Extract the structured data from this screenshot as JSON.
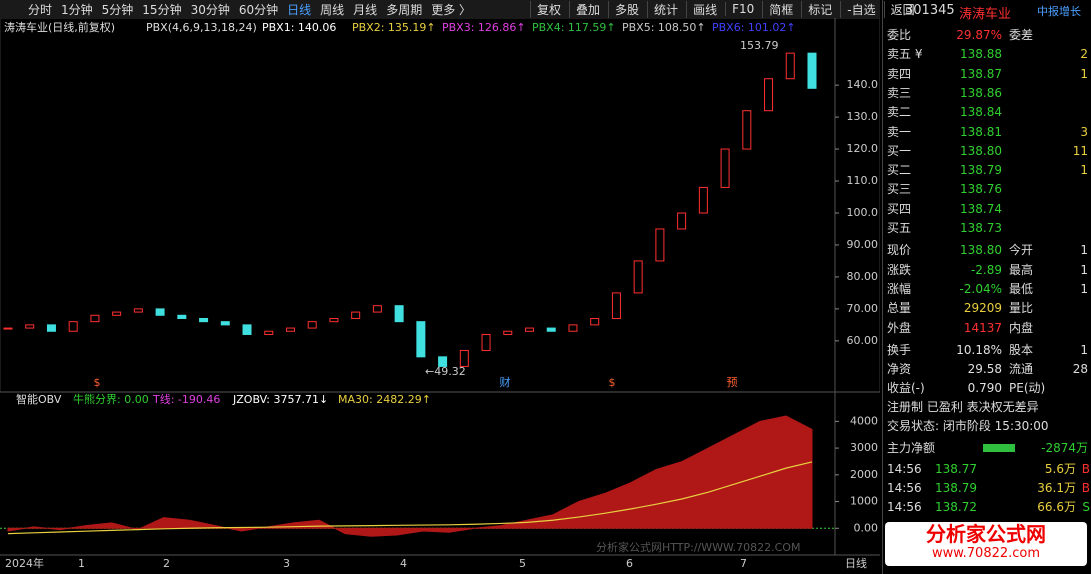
{
  "toolbar": {
    "left": [
      "分时",
      "1分钟",
      "5分钟",
      "15分钟",
      "30分钟",
      "60分钟",
      "日线",
      "周线",
      "月线",
      "多周期",
      "更多 〉"
    ],
    "active": "日线",
    "right": [
      "复权",
      "叠加",
      "多股",
      "统计",
      "画线",
      "F10",
      "简框",
      "标记",
      "-自选",
      "返回"
    ]
  },
  "chart_data": [
    {
      "type": "candlestick",
      "title": "涛涛车业(日线,前复权)",
      "indicator": "PBX(4,6,9,13,18,24)",
      "legend": [
        {
          "name": "PBX1: 140.06",
          "color": "#ffffff"
        },
        {
          "name": "PBX2: 135.19↑",
          "color": "#e8d040"
        },
        {
          "name": "PBX3: 126.86↑",
          "color": "#e040e0"
        },
        {
          "name": "PBX4: 117.59↑",
          "color": "#30c040"
        },
        {
          "name": "PBX5: 108.50↑",
          "color": "#c8c8c8"
        },
        {
          "name": "PBX6: 101.02↑",
          "color": "#4040ff"
        }
      ],
      "annotations": {
        "high": "153.79",
        "low": "←49.32",
        "events": [
          "$",
          "财",
          "$",
          "预"
        ]
      },
      "closes": [
        64,
        65,
        63,
        66,
        68,
        69,
        70,
        68,
        67,
        66,
        65,
        62,
        63,
        64,
        66,
        67,
        69,
        71,
        66,
        55,
        52,
        57,
        62,
        63,
        64,
        63,
        65,
        67,
        75,
        85,
        95,
        100,
        108,
        120,
        132,
        142,
        150,
        139
      ],
      "up_color": "#ff3030",
      "down_color": "#40e0e0",
      "ylim": [
        44,
        161
      ],
      "yticks": [
        {
          "value": 60,
          "label": "60.00"
        },
        {
          "value": 70,
          "label": "70.00"
        },
        {
          "value": 80,
          "label": "80.00"
        },
        {
          "value": 90,
          "label": "90.00"
        },
        {
          "value": 100,
          "label": "100.0"
        },
        {
          "value": 110,
          "label": "110.0"
        },
        {
          "value": 120,
          "label": "120.0"
        },
        {
          "value": 130,
          "label": "130.0"
        },
        {
          "value": 140,
          "label": "140.0"
        }
      ],
      "x_labels": [
        "2024年",
        "1",
        "2",
        "3",
        "4",
        "5",
        "6",
        "7"
      ],
      "period": "日线"
    },
    {
      "type": "area",
      "title": "智能OBV",
      "legend": [
        {
          "name": "牛熊分界: 0.00",
          "color": "#30d030"
        },
        {
          "name": "T线: -190.46",
          "color": "#e040e0"
        },
        {
          "name": "JZOBV: 3757.71↓",
          "color": "#ffffff"
        },
        {
          "name": "MA30: 2482.29↑",
          "color": "#e8d040"
        }
      ],
      "series": [
        {
          "name": "JZOBV",
          "color": "#b01818",
          "values": [
            -100,
            50,
            -50,
            100,
            200,
            -50,
            400,
            300,
            100,
            -100,
            50,
            200,
            300,
            -200,
            -300,
            -250,
            -100,
            -150,
            0,
            100,
            300,
            500,
            1000,
            1300,
            1700,
            2200,
            2500,
            3000,
            3500,
            4000,
            4200,
            3700
          ]
        },
        {
          "name": "MA30",
          "color": "#e8d040",
          "values": [
            -200,
            -170,
            -140,
            -110,
            -80,
            -50,
            -20,
            0,
            20,
            30,
            40,
            60,
            80,
            90,
            100,
            110,
            120,
            130,
            150,
            180,
            220,
            300,
            420,
            560,
            720,
            900,
            1100,
            1350,
            1650,
            1950,
            2250,
            2482
          ]
        }
      ],
      "ylim": [
        -1000,
        4500
      ],
      "yticks": [
        {
          "value": 0,
          "label": "0.00"
        },
        1000,
        2000,
        3000,
        4000
      ]
    }
  ],
  "quote": {
    "code": "301345",
    "name": "涛涛车业",
    "tag": "中报增长",
    "rows": [
      {
        "label": "委比",
        "value": "29.87%",
        "label2": "委差",
        "color": "#ff3030"
      },
      {
        "label": "卖五 ¥",
        "value": "138.88",
        "value2": "2",
        "color": "#30d030"
      },
      {
        "label": "卖四",
        "value": "138.87",
        "value2": "1",
        "color": "#30d030"
      },
      {
        "label": "卖三",
        "value": "138.86",
        "color": "#30d030"
      },
      {
        "label": "卖二",
        "value": "138.84",
        "color": "#30d030"
      },
      {
        "label": "卖一",
        "value": "138.81",
        "value2": "3",
        "color": "#30d030"
      },
      {
        "label": "买一",
        "value": "138.80",
        "value2": "11",
        "color": "#30d030"
      },
      {
        "label": "买二",
        "value": "138.79",
        "value2": "1",
        "color": "#30d030"
      },
      {
        "label": "买三",
        "value": "138.76",
        "color": "#30d030"
      },
      {
        "label": "买四",
        "value": "138.74",
        "color": "#30d030"
      },
      {
        "label": "买五",
        "value": "138.73",
        "color": "#30d030"
      },
      {
        "label": "现价",
        "value": "138.80",
        "label2": "今开",
        "value2": "1",
        "color": "#30d030"
      },
      {
        "label": "涨跌",
        "value": "-2.89",
        "label2": "最高",
        "value2": "1",
        "color": "#30d030"
      },
      {
        "label": "涨幅",
        "value": "-2.04%",
        "label2": "最低",
        "value2": "1",
        "color": "#30d030"
      },
      {
        "label": "总量",
        "value": "29209",
        "label2": "量比",
        "color": "#e8d040"
      },
      {
        "label": "外盘",
        "value": "14137",
        "label2": "内盘",
        "color": "#ff3030"
      },
      {
        "label": "换手",
        "value": "10.18%",
        "label2": "股本",
        "value2": "1",
        "color": "#e0e0e0"
      },
      {
        "label": "净资",
        "value": "29.58",
        "label2": "流通",
        "value2": "28",
        "color": "#e0e0e0"
      },
      {
        "label": "收益(-)",
        "value": "0.790",
        "label2": "PE(动)",
        "color": "#e0e0e0"
      }
    ],
    "notes": [
      "注册制 已盈利 表决权无差异",
      "交易状态: 闭市阶段 15:30:00"
    ],
    "net": {
      "label": "主力净额",
      "value": "-2874万"
    },
    "ticks": [
      {
        "time": "14:56",
        "price": "138.77",
        "vol": "5.6万",
        "side": "B"
      },
      {
        "time": "14:56",
        "price": "138.79",
        "vol": "36.1万",
        "side": "B"
      },
      {
        "time": "14:56",
        "price": "138.72",
        "vol": "66.6万",
        "side": "S"
      }
    ]
  },
  "watermark": "分析家公式网HTTP://WWW.70822.COM",
  "logo": {
    "title": "分析家公式网",
    "url": "www.70822.com"
  }
}
